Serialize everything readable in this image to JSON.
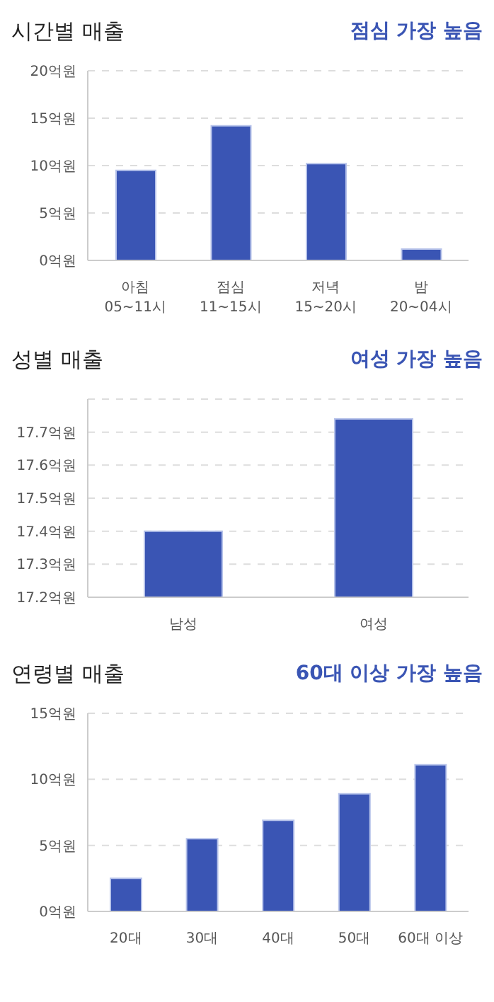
{
  "chart_data": [
    {
      "type": "bar",
      "title": "시간별 매출",
      "subtitle": "점심 가장 높음",
      "categories": [
        "아침\n05~11시",
        "점심\n11~15시",
        "저녁\n15~20시",
        "밤\n20~04시"
      ],
      "values": [
        9.5,
        14.2,
        10.2,
        1.2
      ],
      "color": "#3a55b4",
      "ylim": [
        0,
        20
      ],
      "yticks": [
        {
          "value": 0,
          "label": "0억원"
        },
        {
          "value": 5,
          "label": "5억원"
        },
        {
          "value": 10,
          "label": "10억원"
        },
        {
          "value": 15,
          "label": "15억원"
        },
        {
          "value": 20,
          "label": "20억원"
        }
      ],
      "grid": "y"
    },
    {
      "type": "bar",
      "title": "성별 매출",
      "subtitle": "여성 가장 높음",
      "categories": [
        "남성",
        "여성"
      ],
      "values": [
        17.4,
        17.74
      ],
      "color": "#3a55b4",
      "ylim": [
        17.2,
        17.8
      ],
      "yticks": [
        {
          "value": 17.2,
          "label": "17.2억원"
        },
        {
          "value": 17.3,
          "label": "17.3억원"
        },
        {
          "value": 17.4,
          "label": "17.4억원"
        },
        {
          "value": 17.5,
          "label": "17.5억원"
        },
        {
          "value": 17.6,
          "label": "17.6억원"
        },
        {
          "value": 17.7,
          "label": "17.7억원"
        }
      ],
      "grid": "y"
    },
    {
      "type": "bar",
      "title": "연령별 매출",
      "subtitle": "60대 이상 가장 높음",
      "categories": [
        "20대",
        "30대",
        "40대",
        "50대",
        "60대 이상"
      ],
      "values": [
        2.5,
        5.5,
        6.9,
        8.9,
        11.1
      ],
      "color": "#3a55b4",
      "ylim": [
        0,
        15
      ],
      "yticks": [
        {
          "value": 0,
          "label": "0억원"
        },
        {
          "value": 5,
          "label": "5억원"
        },
        {
          "value": 10,
          "label": "10억원"
        },
        {
          "value": 15,
          "label": "15억원"
        }
      ],
      "grid": "y"
    }
  ]
}
